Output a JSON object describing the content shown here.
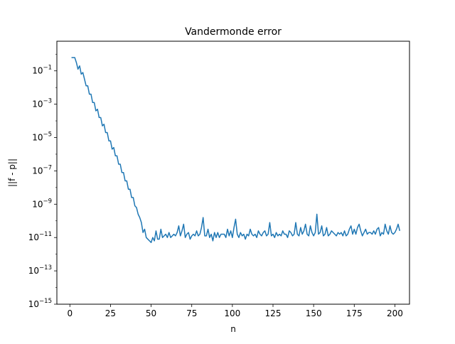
{
  "chart_data": {
    "type": "line",
    "title": "Vandermonde error",
    "xlabel": "n",
    "ylabel": "||f - p||",
    "xlim": [
      -8,
      209
    ],
    "ylim": [
      1e-15,
      6
    ],
    "yscale": "log",
    "grid": false,
    "legend": "none",
    "line_color": "#1f77b4",
    "xticks": [
      0,
      25,
      50,
      75,
      100,
      125,
      150,
      175,
      200
    ],
    "yticks": [
      {
        "value": 0.1,
        "base": "10",
        "exp": "−1"
      },
      {
        "value": 0.001,
        "base": "10",
        "exp": "−3"
      },
      {
        "value": 1e-05,
        "base": "10",
        "exp": "−5"
      },
      {
        "value": 1e-07,
        "base": "10",
        "exp": "−7"
      },
      {
        "value": 1e-09,
        "base": "10",
        "exp": "−9"
      },
      {
        "value": 1e-11,
        "base": "10",
        "exp": "−11"
      },
      {
        "value": 1e-13,
        "base": "10",
        "exp": "−13"
      },
      {
        "value": 1e-15,
        "base": "10",
        "exp": "−15"
      }
    ],
    "series": [
      {
        "x_start": 1,
        "x_step": 1,
        "log10_y": [
          -0.2,
          -0.2,
          -0.2,
          -0.5,
          -0.9,
          -0.7,
          -1.2,
          -1.1,
          -1.5,
          -1.9,
          -1.9,
          -2.4,
          -2.4,
          -2.9,
          -2.9,
          -3.4,
          -3.3,
          -3.8,
          -3.8,
          -4.3,
          -4.2,
          -4.7,
          -4.7,
          -5.2,
          -5.2,
          -5.7,
          -5.6,
          -6.1,
          -6.1,
          -6.6,
          -6.6,
          -7.1,
          -7.1,
          -7.6,
          -7.6,
          -8.1,
          -8.1,
          -8.6,
          -8.6,
          -9.1,
          -9.2,
          -9.6,
          -9.8,
          -10.1,
          -10.7,
          -10.5,
          -11.0,
          -11.1,
          -11.2,
          -11.3,
          -11.0,
          -11.2,
          -10.6,
          -11.1,
          -11.1,
          -10.5,
          -11.0,
          -10.9,
          -10.8,
          -11.0,
          -10.7,
          -11.0,
          -10.9,
          -10.8,
          -10.9,
          -10.7,
          -10.3,
          -10.9,
          -10.6,
          -10.2,
          -11.0,
          -10.8,
          -10.7,
          -11.1,
          -10.9,
          -10.8,
          -10.9,
          -10.6,
          -10.9,
          -10.8,
          -10.4,
          -9.8,
          -10.9,
          -10.9,
          -10.5,
          -11.0,
          -10.8,
          -11.2,
          -10.7,
          -11.0,
          -10.7,
          -11.0,
          -10.8,
          -10.8,
          -10.8,
          -11.0,
          -10.5,
          -10.9,
          -10.6,
          -11.0,
          -10.4,
          -9.9,
          -10.8,
          -11.0,
          -10.7,
          -10.9,
          -10.8,
          -11.1,
          -10.8,
          -10.9,
          -10.5,
          -10.8,
          -10.9,
          -10.8,
          -11.0,
          -10.6,
          -10.8,
          -10.9,
          -10.7,
          -10.6,
          -10.9,
          -10.8,
          -10.1,
          -10.9,
          -10.8,
          -11.0,
          -10.7,
          -10.9,
          -10.8,
          -10.9,
          -10.6,
          -10.8,
          -10.8,
          -11.0,
          -10.6,
          -10.7,
          -10.9,
          -10.8,
          -10.1,
          -10.8,
          -10.9,
          -10.4,
          -10.8,
          -10.6,
          -10.2,
          -10.8,
          -10.9,
          -10.3,
          -10.7,
          -10.9,
          -10.7,
          -9.6,
          -10.8,
          -10.7,
          -10.3,
          -10.9,
          -10.8,
          -10.4,
          -10.9,
          -10.8,
          -10.6,
          -10.7,
          -10.8,
          -10.9,
          -10.7,
          -10.8,
          -10.7,
          -10.9,
          -10.6,
          -10.9,
          -10.8,
          -10.5,
          -10.3,
          -10.8,
          -10.5,
          -10.8,
          -10.4,
          -10.2,
          -10.6,
          -10.9,
          -10.7,
          -10.5,
          -10.8,
          -10.7,
          -10.7,
          -10.8,
          -10.6,
          -10.8,
          -10.5,
          -10.4,
          -10.9,
          -10.7,
          -10.8,
          -10.2,
          -10.6,
          -10.8,
          -10.3,
          -10.7,
          -10.8,
          -10.7,
          -10.5,
          -10.2,
          -10.6
        ]
      }
    ]
  }
}
